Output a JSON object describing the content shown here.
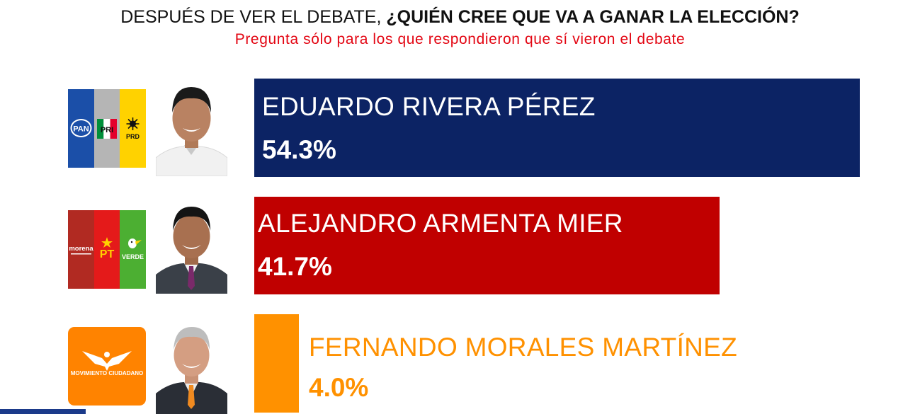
{
  "title_regular": "DESPUÉS DE VER EL DEBATE, ",
  "title_bold": "¿QUIÉN CREE QUE VA A GANAR LA ELECCIÓN?",
  "subtitle": "Pregunta sólo para los que respondieron que sí vieron el debate",
  "chart_data": {
    "type": "bar",
    "orientation": "horizontal",
    "title": "DESPUÉS DE VER EL DEBATE, ¿QUIÉN CREE QUE VA A GANAR LA ELECCIÓN?",
    "subtitle": "Pregunta sólo para los que respondieron que sí vieron el debate",
    "value_suffix": "%",
    "xlim": [
      0,
      54.3
    ],
    "candidates": [
      {
        "name": "EDUARDO RIVERA PÉREZ",
        "value": 54.3,
        "label": "54.3%",
        "color": "#0c2364",
        "text_color": "#ffffff",
        "parties": [
          "PAN",
          "PRI",
          "PRD"
        ],
        "party_colors": [
          "#1b4fa8",
          "#b5b5b5",
          "#ffd200"
        ]
      },
      {
        "name": "ALEJANDRO ARMENTA MIER",
        "value": 41.7,
        "label": "41.7%",
        "color": "#c00000",
        "text_color": "#ffffff",
        "parties": [
          "morena",
          "PT",
          "VERDE"
        ],
        "party_colors": [
          "#b12a22",
          "#e41a1a",
          "#4caf32"
        ]
      },
      {
        "name": "FERNANDO MORALES MARTÍNEZ",
        "value": 4.0,
        "label": "4.0%",
        "color": "#ff9100",
        "text_color": "#ff9100",
        "parties": [
          "MOVIMIENTO CIUDADANO"
        ],
        "party_colors": [
          "#ff8300"
        ]
      }
    ]
  }
}
